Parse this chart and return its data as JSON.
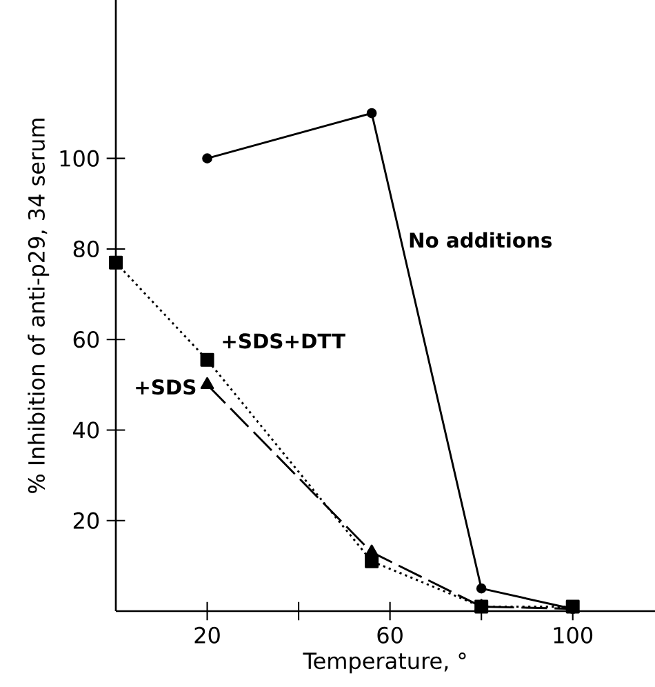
{
  "chart_data": {
    "type": "line",
    "xlabel": "Temperature, °",
    "ylabel": "% Inhibition of anti-p29, 34 serum",
    "xlim": [
      0,
      118
    ],
    "ylim": [
      0,
      135
    ],
    "xticks": [
      20,
      {
        "value": 40,
        "label": null
      },
      60,
      {
        "value": 80,
        "label": null
      },
      100
    ],
    "yticks": [
      20,
      40,
      60,
      80,
      100
    ],
    "grid": false,
    "legend": false,
    "series": [
      {
        "name": "No additions",
        "color": "#000000",
        "marker": "circle",
        "line_style": "solid",
        "x": [
          20,
          56,
          80,
          100
        ],
        "values": [
          100,
          110,
          5,
          0.5
        ]
      },
      {
        "name": "+SDS+DTT",
        "color": "#000000",
        "marker": "square",
        "line_style": "dotted",
        "x": [
          0,
          20,
          56,
          80,
          100
        ],
        "values": [
          77,
          55.5,
          11,
          1,
          1
        ]
      },
      {
        "name": "+SDS",
        "color": "#000000",
        "marker": "triangle",
        "line_style": "dashed",
        "x": [
          20,
          56,
          80,
          100
        ],
        "values": [
          50,
          13,
          1,
          0.5
        ]
      }
    ]
  }
}
